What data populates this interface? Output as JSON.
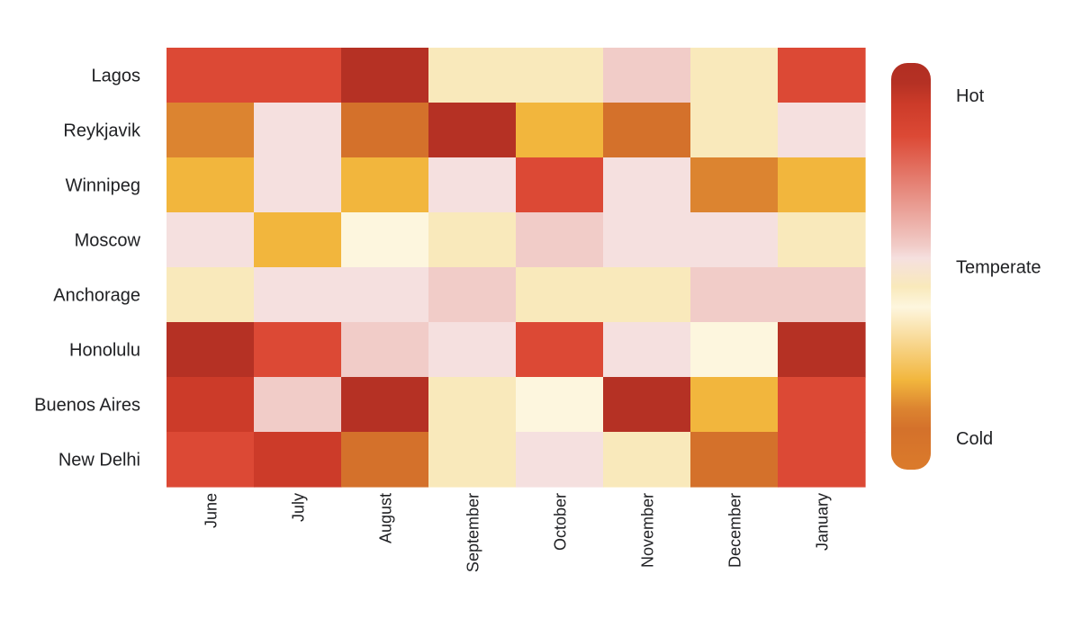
{
  "chart_data": {
    "type": "heatmap",
    "title": "",
    "xlabel": "",
    "ylabel": "",
    "rows": [
      "Lagos",
      "Reykjavik",
      "Winnipeg",
      "Moscow",
      "Anchorage",
      "Honolulu",
      "Buenos Aires",
      "New Delhi"
    ],
    "columns": [
      "June",
      "July",
      "August",
      "September",
      "October",
      "November",
      "December",
      "January"
    ],
    "values": [
      [
        0.82,
        0.82,
        0.95,
        0.45,
        0.45,
        0.55,
        0.45,
        0.82
      ],
      [
        0.15,
        0.52,
        0.1,
        0.95,
        0.22,
        0.1,
        0.45,
        0.52
      ],
      [
        0.22,
        0.52,
        0.22,
        0.52,
        0.82,
        0.52,
        0.15,
        0.22
      ],
      [
        0.52,
        0.22,
        0.4,
        0.45,
        0.55,
        0.52,
        0.52,
        0.45
      ],
      [
        0.45,
        0.52,
        0.52,
        0.55,
        0.45,
        0.45,
        0.55,
        0.55
      ],
      [
        0.95,
        0.82,
        0.55,
        0.52,
        0.82,
        0.52,
        0.4,
        0.95
      ],
      [
        0.9,
        0.55,
        0.95,
        0.45,
        0.4,
        0.95,
        0.22,
        0.82
      ],
      [
        0.82,
        0.9,
        0.1,
        0.45,
        0.52,
        0.45,
        0.1,
        0.82
      ]
    ],
    "scale": {
      "min": 0,
      "max": 1,
      "stops": [
        {
          "at": 0.0,
          "color": "#db7b2b"
        },
        {
          "at": 0.1,
          "color": "#d4712b"
        },
        {
          "at": 0.15,
          "color": "#dc8430"
        },
        {
          "at": 0.22,
          "color": "#f2b63d"
        },
        {
          "at": 0.4,
          "color": "#fdf6de"
        },
        {
          "at": 0.45,
          "color": "#f9e9bb"
        },
        {
          "at": 0.52,
          "color": "#f5e0df"
        },
        {
          "at": 0.55,
          "color": "#f1ccc8"
        },
        {
          "at": 0.82,
          "color": "#dc4935"
        },
        {
          "at": 0.9,
          "color": "#cc3b29"
        },
        {
          "at": 0.95,
          "color": "#b53124"
        },
        {
          "at": 1.0,
          "color": "#b12e22"
        }
      ]
    },
    "legend": {
      "position": "right",
      "labels": [
        {
          "text": "Hot",
          "value": 1.0
        },
        {
          "text": "Temperate",
          "value": 0.5
        },
        {
          "text": "Cold",
          "value": 0.0
        }
      ]
    },
    "grid": false
  }
}
